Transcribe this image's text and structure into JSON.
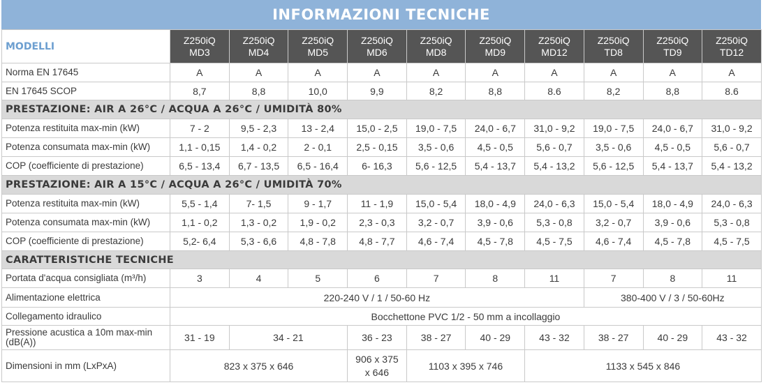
{
  "title": "INFORMAZIONI TECNICHE",
  "header_label": "MODELLI",
  "models": [
    {
      "line1": "Z250iQ",
      "line2": "MD3"
    },
    {
      "line1": "Z250iQ",
      "line2": "MD4"
    },
    {
      "line1": "Z250iQ",
      "line2": "MD5"
    },
    {
      "line1": "Z250iQ",
      "line2": "MD6"
    },
    {
      "line1": "Z250iQ",
      "line2": "MD8"
    },
    {
      "line1": "Z250iQ",
      "line2": "MD9"
    },
    {
      "line1": "Z250iQ",
      "line2": "MD12"
    },
    {
      "line1": "Z250iQ",
      "line2": "TD8"
    },
    {
      "line1": "Z250iQ",
      "line2": "TD9"
    },
    {
      "line1": "Z250iQ",
      "line2": "TD12"
    }
  ],
  "norma": {
    "label": "Norma EN 17645",
    "values": [
      "A",
      "A",
      "A",
      "A",
      "A",
      "A",
      "A",
      "A",
      "A",
      "A"
    ]
  },
  "scop": {
    "label": "EN 17645 SCOP",
    "values": [
      "8,7",
      "8,8",
      "10,0",
      "9,9",
      "8,2",
      "8,8",
      "8.6",
      "8,2",
      "8,8",
      "8.6"
    ]
  },
  "section1": {
    "title": "PRESTAZIONE: AIR A 26°C / ACQUA A 26°C / UMIDITÀ 80%",
    "rows": [
      {
        "label": "Potenza restituita max-min (kW)",
        "values": [
          "7 - 2",
          "9,5 - 2,3",
          "13 - 2,4",
          "15,0 - 2,5",
          "19,0 - 7,5",
          "24,0 - 6,7",
          "31,0 - 9,2",
          "19,0 - 7,5",
          "24,0 - 6,7",
          "31,0 - 9,2"
        ]
      },
      {
        "label": "Potenza consumata max-min (kW)",
        "values": [
          "1,1 - 0,15",
          "1,4 - 0,2",
          "2 - 0,1",
          "2,5 - 0,15",
          "3,5 - 0,6",
          "4,5 - 0,5",
          "5,6 - 0,7",
          "3,5 - 0,6",
          "4,5 - 0,5",
          "5,6 - 0,7"
        ]
      },
      {
        "label": "COP (coefficiente di prestazione)",
        "values": [
          "6,5 - 13,4",
          "6,7 - 13,5",
          "6,5 - 16,4",
          "6- 16,3",
          "5,6 - 12,5",
          "5,4 - 13,7",
          "5,4 - 13,2",
          "5,6 - 12,5",
          "5,4 - 13,7",
          "5,4 - 13,2"
        ]
      }
    ]
  },
  "section2": {
    "title": "PRESTAZIONE: AIR A 15°C / ACQUA A 26°C / UMIDITÀ 70%",
    "rows": [
      {
        "label": "Potenza restituita max-min (kW)",
        "values": [
          "5,5 - 1,4",
          "7- 1,5",
          "9 - 1,7",
          "11 - 1,9",
          "15,0 - 5,4",
          "18,0 - 4,9",
          "24,0 - 6,3",
          "15,0 - 5,4",
          "18,0 - 4,9",
          "24,0 - 6,3"
        ]
      },
      {
        "label": "Potenza consumata max-min (kW)",
        "values": [
          "1,1 - 0,2",
          "1,3 - 0,2",
          "1,9 - 0,2",
          "2,3 - 0,3",
          "3,2 - 0,7",
          "3,9 - 0,6",
          "5,3 - 0,8",
          "3,2 - 0,7",
          "3,9 - 0,6",
          "5,3 - 0,8"
        ]
      },
      {
        "label": "COP (coefficiente di prestazione)",
        "values": [
          "5,2- 6,4",
          "5,3 - 6,6",
          "4,8 - 7,8",
          "4,8 - 7,7",
          "4,6 - 7,4",
          "4,5 - 7,8",
          "4,5 - 7,5",
          "4,6 - 7,4",
          "4,5 - 7,8",
          "4,5 - 7,5"
        ]
      }
    ]
  },
  "section3": {
    "title": "CARATTERISTICHE TECNICHE",
    "portata": {
      "label": "Portata d'acqua consigliata (m³/h)",
      "values": [
        "3",
        "4",
        "5",
        "6",
        "7",
        "8",
        "11",
        "7",
        "8",
        "11"
      ]
    },
    "alimentazione": {
      "label": "Alimentazione elettrica",
      "mono": "220-240 V / 1 / 50-60 Hz",
      "tri": "380-400 V / 3 / 50-60Hz"
    },
    "collegamento": {
      "label": "Collegamento idraulico",
      "value": "Bocchettone PVC 1/2 - 50 mm a incollaggio"
    },
    "pressione": {
      "label": "Pressione acustica a 10m max-min (dB(A))",
      "values": [
        "31 - 19",
        "34 - 21",
        "36 - 23",
        "38 - 27",
        "40 - 29",
        "43 - 32",
        "38 - 27",
        "40 - 29",
        "43 - 32"
      ]
    },
    "dimensioni": {
      "label": "Dimensioni in mm (LxPxA)",
      "values": [
        "823 x 375 x 646",
        "906 x 375 x 646",
        "1103 x 395 x 746",
        "1133 x 545 x 846"
      ]
    }
  }
}
